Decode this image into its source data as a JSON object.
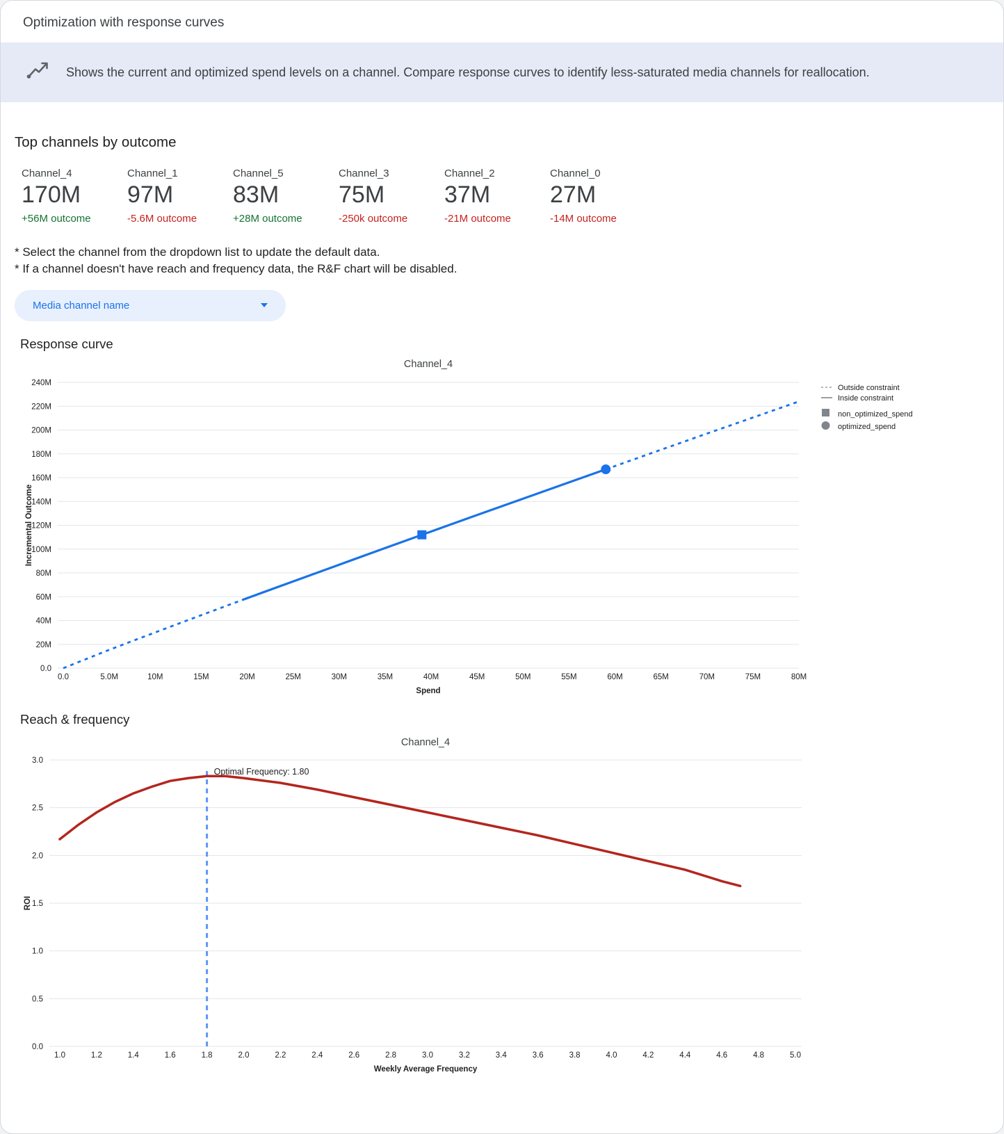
{
  "header": {
    "title": "Optimization with response curves"
  },
  "banner": {
    "icon": "insights-icon",
    "text": "Shows the current and optimized spend levels on a channel. Compare response curves to identify less-saturated media channels for reallocation."
  },
  "top_channels": {
    "heading": "Top channels by outcome",
    "items": [
      {
        "name": "Channel_4",
        "value": "170M",
        "outcome": "+56M outcome",
        "trend": "positive"
      },
      {
        "name": "Channel_1",
        "value": "97M",
        "outcome": "-5.6M outcome",
        "trend": "negative"
      },
      {
        "name": "Channel_5",
        "value": "83M",
        "outcome": "+28M outcome",
        "trend": "positive"
      },
      {
        "name": "Channel_3",
        "value": "75M",
        "outcome": "-250k outcome",
        "trend": "negative"
      },
      {
        "name": "Channel_2",
        "value": "37M",
        "outcome": "-21M outcome",
        "trend": "negative"
      },
      {
        "name": "Channel_0",
        "value": "27M",
        "outcome": "-14M outcome",
        "trend": "negative"
      }
    ]
  },
  "notes": [
    "* Select the channel from the dropdown list to update the default data.",
    "* If a channel doesn't have reach and frequency data, the R&F chart will be disabled."
  ],
  "dropdown": {
    "label": "Media channel name"
  },
  "sections": {
    "response_curve": {
      "heading": "Response curve"
    },
    "reach_frequency": {
      "heading": "Reach & frequency"
    }
  },
  "palette": {
    "positive": "#137333",
    "negative": "#c5221f",
    "line_blue": "#1a73e8",
    "line_red": "#b3261e",
    "vline_blue": "#5e97f6",
    "dropdown_bg": "#e8f0fe",
    "dropdown_text": "#1a73e8",
    "banner_bg": "#e6eaf6",
    "legend_gray": "#80868b"
  },
  "chart_data": [
    {
      "type": "line",
      "title": "Channel_4",
      "xlabel": "Spend",
      "ylabel": "Incremental Outcome",
      "unit": "millions",
      "xlim": [
        0,
        80
      ],
      "ylim": [
        0,
        240
      ],
      "x_ticks": [
        0,
        5,
        10,
        15,
        20,
        25,
        30,
        35,
        40,
        45,
        50,
        55,
        60,
        65,
        70,
        75,
        80
      ],
      "x_tick_labels": [
        "0.0",
        "5.0M",
        "10M",
        "15M",
        "20M",
        "25M",
        "30M",
        "35M",
        "40M",
        "45M",
        "50M",
        "55M",
        "60M",
        "65M",
        "70M",
        "75M",
        "80M"
      ],
      "y_ticks": [
        0,
        20,
        40,
        60,
        80,
        100,
        120,
        140,
        160,
        180,
        200,
        220,
        240
      ],
      "y_tick_labels": [
        "0.0",
        "20M",
        "40M",
        "60M",
        "80M",
        "100M",
        "120M",
        "140M",
        "160M",
        "180M",
        "200M",
        "220M",
        "240M"
      ],
      "color": "#1a73e8",
      "x": [
        0,
        5,
        10,
        15,
        19.5,
        25,
        30,
        35,
        39,
        45,
        50,
        55,
        59,
        65,
        70,
        75,
        80
      ],
      "y": [
        0,
        15.4,
        30.1,
        44.5,
        57.4,
        72.9,
        86.9,
        100.9,
        112,
        128.6,
        142.3,
        156.1,
        167,
        183.4,
        197.0,
        210.5,
        224.0
      ],
      "inside_constraint_range": [
        19.5,
        59
      ],
      "markers": [
        {
          "shape": "square",
          "x": 39,
          "y": 112,
          "label": "non_optimized_spend"
        },
        {
          "shape": "circle",
          "x": 59,
          "y": 167,
          "label": "optimized_spend"
        }
      ],
      "legend_position": "right",
      "legend": [
        {
          "swatch": "dash",
          "label": "Outside constraint"
        },
        {
          "swatch": "line",
          "label": "Inside constraint"
        },
        {
          "swatch": "square",
          "label": "non_optimized_spend"
        },
        {
          "swatch": "circle",
          "label": "optimized_spend"
        }
      ]
    },
    {
      "type": "line",
      "title": "Channel_4",
      "xlabel": "Weekly Average Frequency",
      "ylabel": "ROI",
      "xlim": [
        1.0,
        5.0
      ],
      "ylim": [
        0.0,
        3.0
      ],
      "x_ticks": [
        1.0,
        1.2,
        1.4,
        1.6,
        1.8,
        2.0,
        2.2,
        2.4,
        2.6,
        2.8,
        3.0,
        3.2,
        3.4,
        3.6,
        3.8,
        4.0,
        4.2,
        4.4,
        4.6,
        4.8,
        5.0
      ],
      "x_tick_labels": [
        "1.0",
        "1.2",
        "1.4",
        "1.6",
        "1.8",
        "2.0",
        "2.2",
        "2.4",
        "2.6",
        "2.8",
        "3.0",
        "3.2",
        "3.4",
        "3.6",
        "3.8",
        "4.0",
        "4.2",
        "4.4",
        "4.6",
        "4.8",
        "5.0"
      ],
      "y_ticks": [
        0,
        0.5,
        1.0,
        1.5,
        2.0,
        2.5,
        3.0
      ],
      "y_tick_labels": [
        "0.0",
        "0.5",
        "1.0",
        "1.5",
        "2.0",
        "2.5",
        "3.0"
      ],
      "color": "#b3261e",
      "x": [
        1.0,
        1.1,
        1.2,
        1.3,
        1.4,
        1.5,
        1.6,
        1.7,
        1.8,
        1.9,
        2.0,
        2.2,
        2.4,
        2.6,
        2.8,
        3.0,
        3.2,
        3.4,
        3.6,
        3.8,
        4.0,
        4.2,
        4.4,
        4.6,
        4.7
      ],
      "y": [
        2.17,
        2.32,
        2.45,
        2.56,
        2.65,
        2.72,
        2.78,
        2.81,
        2.83,
        2.83,
        2.81,
        2.76,
        2.69,
        2.61,
        2.53,
        2.45,
        2.37,
        2.29,
        2.21,
        2.12,
        2.03,
        1.94,
        1.85,
        1.73,
        1.68
      ],
      "optimal_frequency": 1.8,
      "annotation": "Optimal Frequency: 1.80",
      "vline": {
        "x": 1.8,
        "color": "#5e97f6"
      }
    }
  ]
}
